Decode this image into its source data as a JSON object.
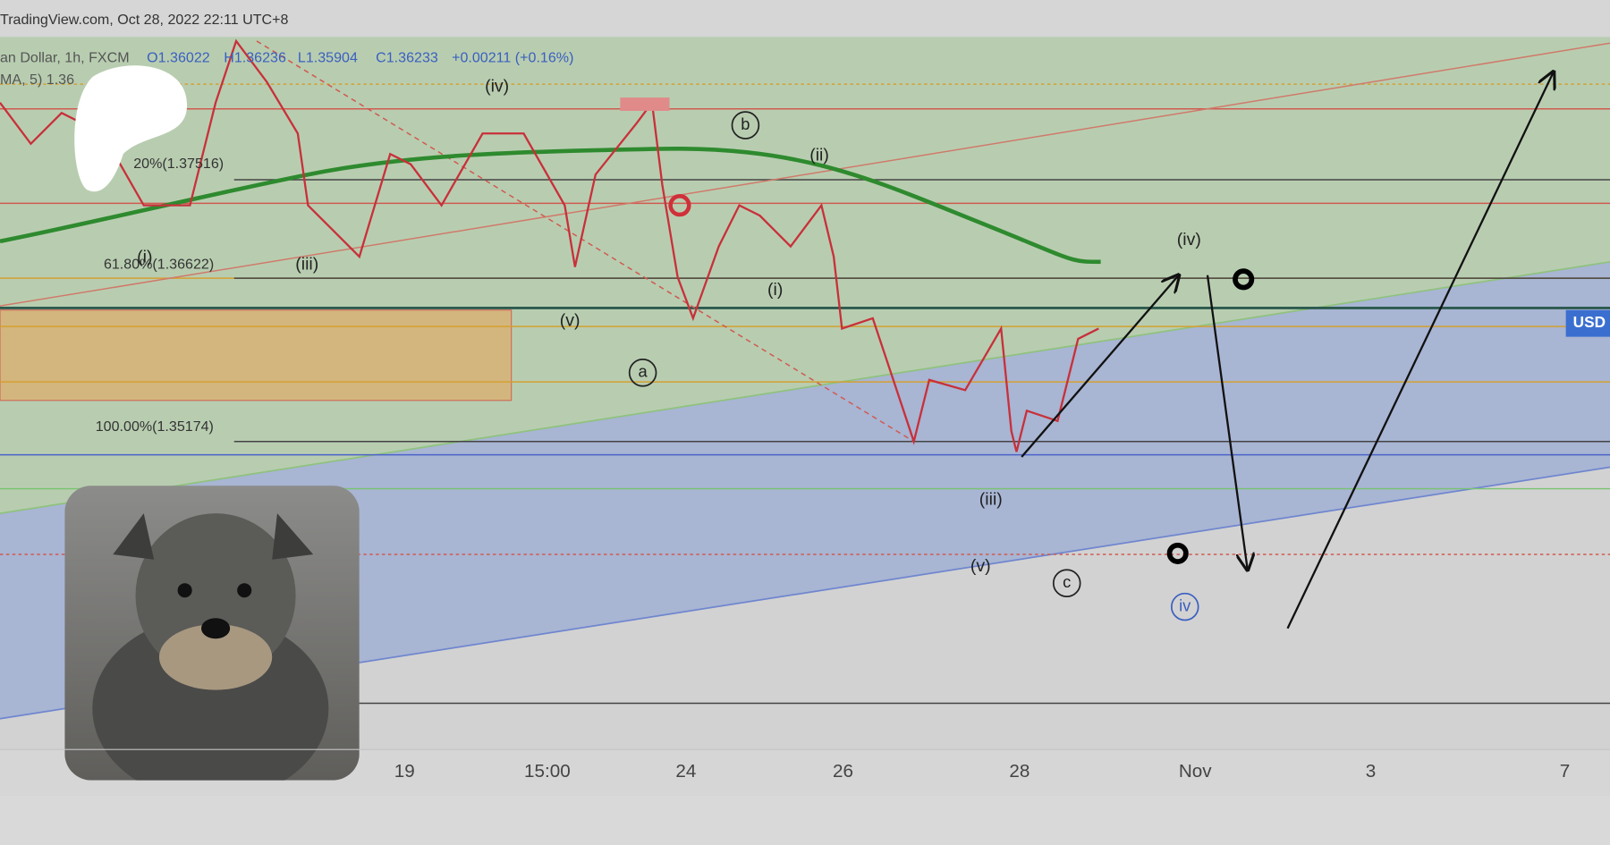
{
  "header": {
    "source": "TradingView.com, Oct 28, 2022 22:11 UTC+8"
  },
  "legend": {
    "symbol": "an Dollar, 1h, FXCM",
    "open": "O1.36022",
    "high": "H1.36236",
    "low": "L1.35904",
    "close": "C1.36233",
    "change": "+0.00211 (+0.16%)",
    "ma": "MA, 5)  1.36"
  },
  "fib_levels": [
    "20%(1.37516)",
    "61.80%(1.36622)",
    "100.00%(1.35174)"
  ],
  "wave_labels": [
    "(iv)",
    "(iii)",
    "(i)",
    "(v)",
    "a",
    "b",
    "(ii)",
    "(i)",
    "(iv)",
    "(iii)",
    "(v)",
    "c",
    "iv"
  ],
  "price_tag": "USD",
  "x_axis": [
    "19",
    "15:00",
    "24",
    "26",
    "28",
    "Nov",
    "3",
    "7"
  ]
}
